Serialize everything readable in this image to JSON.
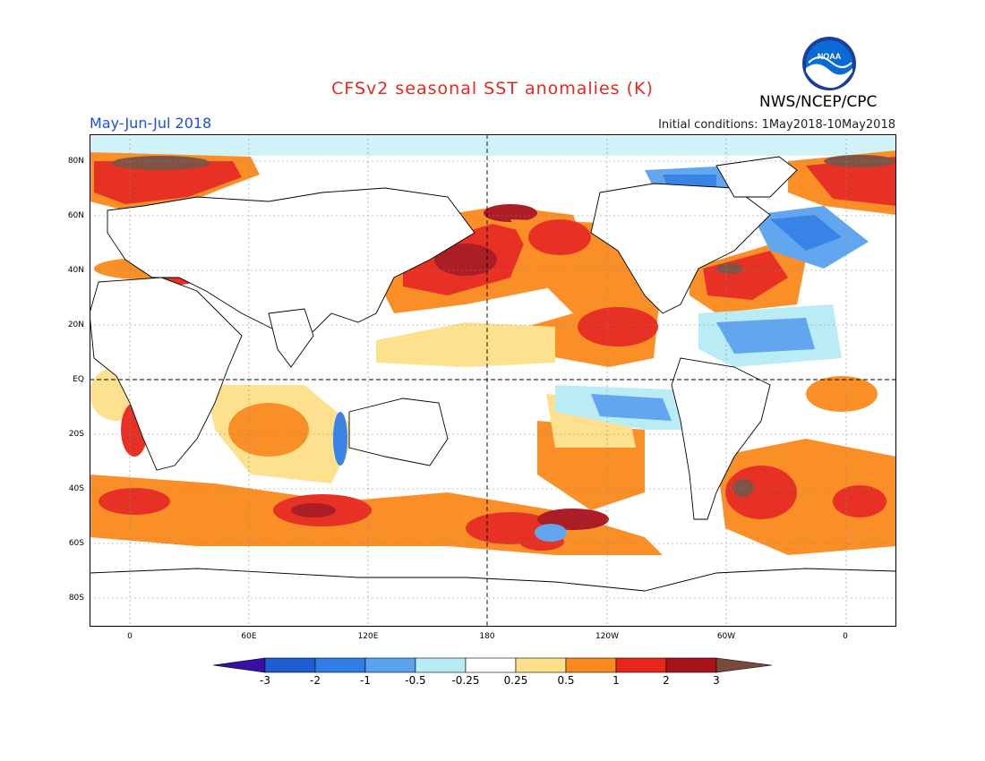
{
  "header": {
    "title": "CFSv2 seasonal SST anomalies (K)",
    "period": "May-Jun-Jul 2018",
    "initial_conditions": "Initial conditions: 1May2018-10May2018",
    "agency": "NWS/NCEP/CPC",
    "logo_text": "NOAA"
  },
  "colors": {
    "title": "#e8261e",
    "period": "#1f4ee0",
    "land_outline": "#000000",
    "ocean_neutral": "#ffffff"
  },
  "axes": {
    "lat_labels": [
      "80N",
      "60N",
      "40N",
      "20N",
      "EQ",
      "20S",
      "40S",
      "60S",
      "80S"
    ],
    "lon_labels": [
      "0",
      "60E",
      "120E",
      "180",
      "120W",
      "60W",
      "0"
    ]
  },
  "colorbar": {
    "tick_labels": [
      "-3",
      "-2",
      "-1",
      "-0.5",
      "-0.25",
      "0.25",
      "0.5",
      "1",
      "2",
      "3"
    ],
    "colors": [
      "#3a0fa8",
      "#1e5ed2",
      "#2f7de6",
      "#59a2ef",
      "#b6ecf5",
      "#ffffff",
      "#fde08a",
      "#fb8a1c",
      "#e7261a",
      "#a8121a",
      "#7a4a3c"
    ]
  }
}
